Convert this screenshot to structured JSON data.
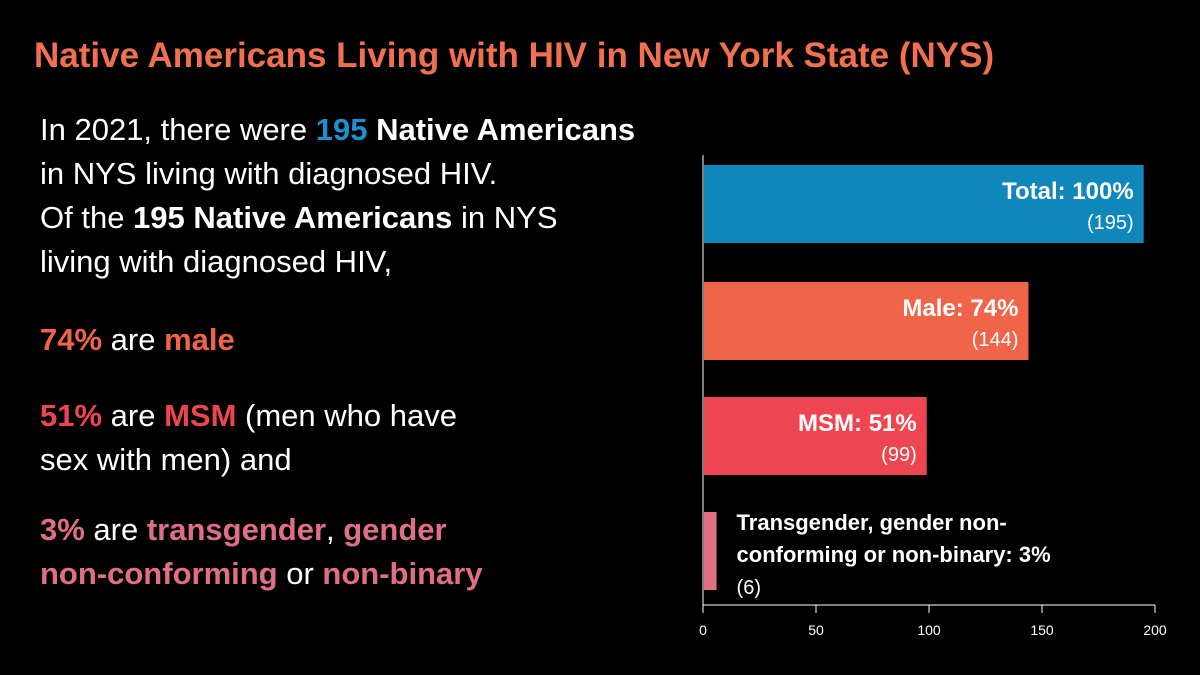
{
  "title": "Native Americans Living with HIV in New York State (NYS)",
  "intro": {
    "l1_a": "In 2021, there were ",
    "l1_num": "195",
    "l1_b": " Native Americans",
    "l2": "in NYS living with diagnosed HIV.",
    "l3_a": "Of the ",
    "l3_b": "195 Native Americans",
    "l3_c": " in NYS",
    "l4": "living with diagnosed HIV,"
  },
  "stat_male": {
    "pct": "74%",
    "mid": " are ",
    "label": "male"
  },
  "stat_msm": {
    "pct": "51%",
    "mid": " are ",
    "label": "MSM",
    "rest": " (men who have",
    "line2": "sex with men) and"
  },
  "stat_trans": {
    "pct": "3%",
    "mid": " are ",
    "t1": "transgender",
    "sep": ", ",
    "t2": "gender",
    "t3": "non-conforming",
    "or": " or ",
    "t4": "non-binary"
  },
  "colors": {
    "total": "#0f87ba",
    "male": "#f0654a",
    "msm": "#ee4650",
    "trans": "#e06f85",
    "highlight_blue": "#1e8fd0"
  },
  "chart_data": {
    "type": "bar",
    "orientation": "horizontal",
    "categories": [
      "Total",
      "Male",
      "MSM",
      "Transgender, gender non-conforming or non-binary"
    ],
    "values": [
      195,
      144,
      99,
      6
    ],
    "percents": [
      "100%",
      "74%",
      "51%",
      "3%"
    ],
    "bar_labels": [
      "Total: 100%",
      "Male: 74%",
      "MSM: 51%",
      "Transgender, gender non-conforming or non-binary: 3%"
    ],
    "bar_label_lines": [
      [
        "Total: 100%"
      ],
      [
        "Male: 74%"
      ],
      [
        "MSM: 51%"
      ],
      [
        "Transgender, gender non-",
        "conforming or non-binary: 3%"
      ]
    ],
    "count_labels": [
      "(195)",
      "(144)",
      "(99)",
      "(6)"
    ],
    "colors": [
      "#0f87ba",
      "#f0654a",
      "#ee4650",
      "#e06f85"
    ],
    "xlim": [
      0,
      200
    ],
    "xticks": [
      0,
      50,
      100,
      150,
      200
    ],
    "grid": false
  }
}
